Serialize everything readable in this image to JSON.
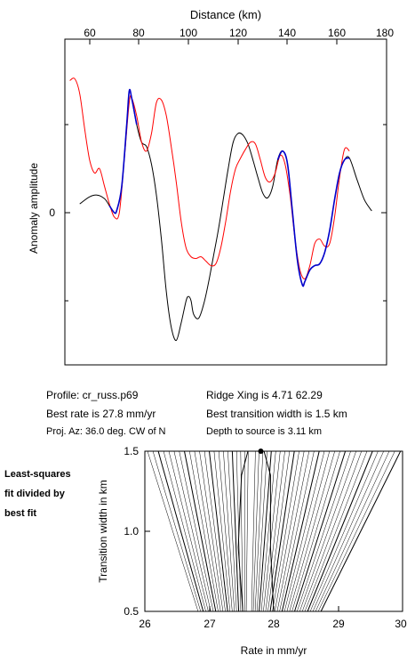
{
  "top_chart": {
    "xlabel": "Distance (km)",
    "ylabel": "Anomaly amplitude",
    "x_ticks": [
      "60",
      "80",
      "100",
      "120",
      "140",
      "160",
      "180"
    ],
    "y_tick_zero": "0"
  },
  "info": {
    "profile": "Profile: cr_russ.p69",
    "best_rate": "Best rate is 27.8 mm/yr",
    "proj_az": "Proj. Az: 36.0 deg. CW of N",
    "ridge_xing": "Ridge Xing is 4.71  62.29",
    "best_width": "Best transition width is 1.5 km",
    "depth": "Depth to source is   3.11 km"
  },
  "side_note": [
    "Least-squares",
    "fit divided by",
    "best fit"
  ],
  "contour_chart": {
    "xlabel": "Rate in mm/yr",
    "ylabel": "Transition width in km",
    "x_ticks": [
      "26",
      "27",
      "28",
      "29",
      "30"
    ],
    "y_ticks": [
      "0.5",
      "1.0",
      "1.5"
    ]
  },
  "chart_data": [
    {
      "type": "line",
      "xlabel": "Distance (km)",
      "ylabel": "Anomaly amplitude",
      "xlim": [
        50,
        180
      ],
      "ylim": [
        -1.6,
        1.7
      ],
      "grid": false,
      "series": [
        {
          "color": "#000000",
          "x": [
            56,
            60,
            63,
            66,
            68,
            70,
            71,
            73,
            75,
            76,
            77,
            79,
            81,
            83,
            85,
            87,
            89,
            91,
            93,
            95,
            97,
            99,
            100,
            101,
            102,
            104,
            106,
            108,
            110,
            112,
            114,
            116,
            118,
            120,
            122,
            124,
            126,
            128,
            130,
            132,
            134,
            136,
            138,
            140,
            142,
            144,
            146,
            147,
            149,
            151,
            153,
            155,
            157,
            159,
            161,
            163,
            165,
            168,
            171,
            174
          ],
          "y": [
            0.1,
            0.18,
            0.2,
            0.16,
            0.08,
            0.0,
            0.03,
            0.3,
            1.0,
            1.38,
            1.3,
            1.0,
            0.8,
            0.75,
            0.55,
            0.2,
            -0.3,
            -0.9,
            -1.3,
            -1.45,
            -1.25,
            -1.0,
            -0.95,
            -1.0,
            -1.15,
            -1.2,
            -1.05,
            -0.8,
            -0.5,
            -0.2,
            0.15,
            0.5,
            0.8,
            0.9,
            0.88,
            0.78,
            0.6,
            0.4,
            0.22,
            0.17,
            0.3,
            0.6,
            0.7,
            0.55,
            0.0,
            -0.55,
            -0.82,
            -0.78,
            -0.65,
            -0.6,
            -0.58,
            -0.45,
            -0.2,
            0.15,
            0.45,
            0.6,
            0.62,
            0.38,
            0.15,
            0.02
          ]
        },
        {
          "color": "#ff0000",
          "x": [
            52,
            54,
            56,
            58,
            60,
            62,
            64,
            66,
            68,
            70,
            72,
            74,
            76,
            77,
            79,
            81,
            83,
            85,
            87,
            89,
            91,
            93,
            95,
            97,
            99,
            101,
            103,
            105,
            107,
            109,
            111,
            113,
            115,
            117,
            119,
            121,
            123,
            125,
            127,
            129,
            131,
            133,
            135,
            137,
            139,
            141,
            143,
            145,
            147,
            149,
            151,
            153,
            155,
            157,
            159,
            161,
            163,
            165
          ],
          "y": [
            1.5,
            1.52,
            1.35,
            0.95,
            0.6,
            0.45,
            0.5,
            0.3,
            0.1,
            -0.05,
            0.0,
            0.6,
            1.25,
            1.3,
            1.1,
            0.8,
            0.7,
            0.9,
            1.25,
            1.28,
            1.1,
            0.75,
            0.35,
            -0.1,
            -0.4,
            -0.5,
            -0.52,
            -0.5,
            -0.55,
            -0.6,
            -0.58,
            -0.4,
            -0.1,
            0.25,
            0.5,
            0.62,
            0.72,
            0.8,
            0.78,
            0.6,
            0.4,
            0.35,
            0.45,
            0.65,
            0.55,
            0.2,
            -0.3,
            -0.65,
            -0.75,
            -0.6,
            -0.35,
            -0.3,
            -0.38,
            -0.35,
            -0.05,
            0.4,
            0.72,
            0.7
          ]
        },
        {
          "color": "#0000cc",
          "x": [
            68,
            70,
            71,
            73,
            75,
            76,
            77,
            79
          ],
          "y": [
            0.08,
            0.0,
            0.03,
            0.3,
            1.0,
            1.38,
            1.3,
            1.0
          ]
        },
        {
          "color": "#0000cc",
          "x": [
            136,
            138,
            140,
            142,
            144,
            146,
            147,
            149,
            151,
            153,
            155,
            157,
            159,
            161,
            163,
            165
          ],
          "y": [
            0.6,
            0.7,
            0.55,
            0.0,
            -0.55,
            -0.82,
            -0.78,
            -0.65,
            -0.6,
            -0.58,
            -0.45,
            -0.2,
            0.15,
            0.45,
            0.6,
            0.62
          ]
        }
      ]
    },
    {
      "type": "contour",
      "xlabel": "Rate in mm/yr",
      "ylabel": "Transition width in km",
      "xlim": [
        26,
        30
      ],
      "ylim": [
        0.5,
        1.5
      ],
      "grid": false,
      "best_fit_point": {
        "x": 27.8,
        "y": 1.5
      }
    }
  ]
}
